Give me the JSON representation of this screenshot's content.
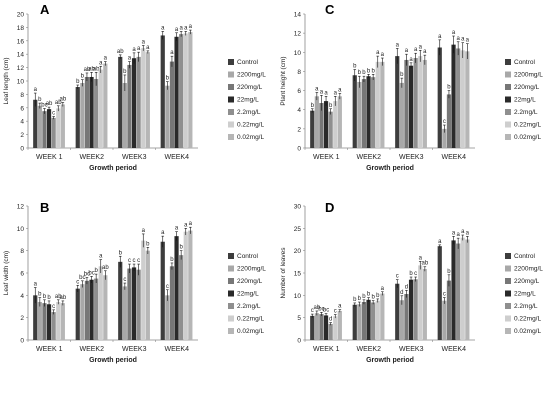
{
  "chart_data": [
    {
      "type": "bar",
      "panel_letter": "A",
      "title": "",
      "xlabel": "Growth period",
      "ylabel": "Leaf length (cm)",
      "ylim": [
        0,
        20
      ],
      "yticks": [
        0,
        2,
        4,
        6,
        8,
        10,
        12,
        14,
        16,
        18,
        20
      ],
      "grid": false,
      "legend_position": "right",
      "categories": [
        "WEEK 1",
        "WEEK2",
        "WEEK3",
        "WEEK4"
      ],
      "series": [
        {
          "name": "Control",
          "values": [
            7.2,
            9.1,
            13.6,
            16.8
          ],
          "errors": [
            1.0,
            0.3,
            0.3,
            0.6
          ],
          "letters": [
            "a",
            "b",
            "ab",
            "a"
          ]
        },
        {
          "name": "2200mg/L",
          "values": [
            6.3,
            9.7,
            9.7,
            9.3
          ],
          "errors": [
            0.4,
            0.5,
            1.2,
            0.6
          ],
          "letters": [
            "b",
            "b",
            "b",
            "b"
          ]
        },
        {
          "name": "220mg/L",
          "values": [
            5.5,
            10.6,
            12.4,
            12.9
          ],
          "errors": [
            0.4,
            0.6,
            0.5,
            0.8
          ],
          "letters": [
            "bc",
            "ab",
            "a",
            "a"
          ]
        },
        {
          "name": "22mg/L",
          "values": [
            5.8,
            10.6,
            13.4,
            16.6
          ],
          "errors": [
            0.3,
            0.7,
            0.8,
            0.6
          ],
          "letters": [
            "ab",
            "ab",
            "a",
            "a"
          ]
        },
        {
          "name": "2.2mg/L",
          "values": [
            4.5,
            10.3,
            13.6,
            17.0
          ],
          "errors": [
            0.2,
            1.0,
            0.7,
            0.4
          ],
          "letters": [
            "c",
            "ab",
            "a",
            "a"
          ]
        },
        {
          "name": "0.22mg/L",
          "values": [
            5.9,
            11.7,
            14.9,
            17.1
          ],
          "errors": [
            0.4,
            0.5,
            0.4,
            0.3
          ],
          "letters": [
            "ab",
            "a",
            "a",
            "a"
          ]
        },
        {
          "name": "0.02mg/L",
          "values": [
            6.5,
            12.6,
            14.3,
            17.3
          ],
          "errors": [
            0.3,
            0.3,
            0.2,
            0.3
          ],
          "letters": [
            "ab",
            "a",
            "a",
            "a"
          ]
        }
      ]
    },
    {
      "type": "bar",
      "panel_letter": "C",
      "title": "",
      "xlabel": "Growth period",
      "ylabel": "Plant height (cm)",
      "ylim": [
        0,
        14
      ],
      "yticks": [
        0,
        2,
        4,
        6,
        8,
        10,
        12,
        14
      ],
      "grid": false,
      "legend_position": "right",
      "categories": [
        "WEEK 1",
        "WEEK2",
        "WEEK3",
        "WEEK4"
      ],
      "series": [
        {
          "name": "Control",
          "values": [
            3.9,
            7.6,
            9.6,
            10.5
          ],
          "errors": [
            0.2,
            0.6,
            0.8,
            0.8
          ],
          "letters": [
            "b",
            "b",
            "a",
            "a"
          ]
        },
        {
          "name": "2200mg/L",
          "values": [
            5.4,
            6.9,
            6.8,
            2.0
          ],
          "errors": [
            0.4,
            0.6,
            0.5,
            0.4
          ],
          "letters": [
            "a",
            "b",
            "b",
            "c"
          ]
        },
        {
          "name": "220mg/L",
          "values": [
            4.7,
            7.2,
            9.2,
            5.6
          ],
          "errors": [
            0.8,
            0.3,
            0.6,
            0.4
          ],
          "letters": [
            "a",
            "b",
            "a",
            "b"
          ]
        },
        {
          "name": "22mg/L",
          "values": [
            4.9,
            7.5,
            8.6,
            10.8
          ],
          "errors": [
            0.5,
            0.2,
            0.3,
            0.9
          ],
          "letters": [
            "a",
            "b",
            "a",
            "a"
          ]
        },
        {
          "name": "2.2mg/L",
          "values": [
            3.8,
            7.4,
            9.4,
            10.4
          ],
          "errors": [
            0.3,
            0.3,
            0.5,
            0.7
          ],
          "letters": [
            "b",
            "b",
            "a",
            "a"
          ]
        },
        {
          "name": "0.22mg/L",
          "values": [
            4.9,
            9.0,
            9.6,
            10.2
          ],
          "errors": [
            0.5,
            0.6,
            0.6,
            0.8
          ],
          "letters": [
            "a",
            "a",
            "a",
            "a"
          ]
        },
        {
          "name": "0.02mg/L",
          "values": [
            5.4,
            9.0,
            9.2,
            10.1
          ],
          "errors": [
            0.3,
            0.4,
            0.5,
            0.8
          ],
          "letters": [
            "a",
            "a",
            "a",
            "a"
          ]
        }
      ]
    },
    {
      "type": "bar",
      "panel_letter": "B",
      "title": "",
      "xlabel": "Growth period",
      "ylabel": "Leaf width (cm)",
      "ylim": [
        0,
        12
      ],
      "yticks": [
        0,
        2,
        4,
        6,
        8,
        10,
        12
      ],
      "grid": false,
      "legend_position": "right",
      "categories": [
        "WEEK 1",
        "WEEK2",
        "WEEK3",
        "WEEK4"
      ],
      "series": [
        {
          "name": "Control",
          "values": [
            4.0,
            4.6,
            7.0,
            8.8
          ],
          "errors": [
            0.7,
            0.3,
            0.5,
            0.5
          ],
          "letters": [
            "a",
            "c",
            "b",
            "a"
          ]
        },
        {
          "name": "2200mg/L",
          "values": [
            3.4,
            5.0,
            4.8,
            4.0
          ],
          "errors": [
            0.4,
            0.3,
            0.3,
            0.5
          ],
          "letters": [
            "b",
            "bc",
            "c",
            "c"
          ]
        },
        {
          "name": "220mg/L",
          "values": [
            3.3,
            5.3,
            6.4,
            6.6
          ],
          "errors": [
            0.3,
            0.3,
            0.4,
            0.3
          ],
          "letters": [
            "b",
            "bc",
            "c",
            "b"
          ]
        },
        {
          "name": "22mg/L",
          "values": [
            3.2,
            5.4,
            6.5,
            9.3
          ],
          "errors": [
            0.3,
            0.3,
            0.3,
            0.4
          ],
          "letters": [
            "b",
            "bc",
            "c",
            "a"
          ]
        },
        {
          "name": "2.2mg/L",
          "values": [
            2.5,
            5.5,
            6.3,
            7.6
          ],
          "errors": [
            0.2,
            0.4,
            0.5,
            0.4
          ],
          "letters": [
            "c",
            "b",
            "c",
            "b"
          ]
        },
        {
          "name": "0.22mg/L",
          "values": [
            3.4,
            6.6,
            8.9,
            9.7
          ],
          "errors": [
            0.2,
            0.6,
            0.6,
            0.3
          ],
          "letters": [
            "ab",
            "a",
            "a",
            "a"
          ]
        },
        {
          "name": "0.02mg/L",
          "values": [
            3.3,
            5.8,
            8.0,
            9.8
          ],
          "errors": [
            0.2,
            0.4,
            0.3,
            0.3
          ],
          "letters": [
            "ab",
            "ab",
            "b",
            "a"
          ]
        }
      ]
    },
    {
      "type": "bar",
      "panel_letter": "D",
      "title": "",
      "xlabel": "Growth period",
      "ylabel": "Number of leaves",
      "ylim": [
        0,
        30
      ],
      "yticks": [
        0,
        5,
        10,
        15,
        20,
        25,
        30
      ],
      "grid": false,
      "legend_position": "right",
      "categories": [
        "WEEK 1",
        "WEEK2",
        "WEEK3",
        "WEEK4"
      ],
      "series": [
        {
          "name": "Control",
          "values": [
            5.4,
            7.9,
            12.6,
            21.0
          ],
          "errors": [
            0.4,
            0.4,
            0.9,
            0.3
          ],
          "letters": [
            "c",
            "b",
            "c",
            "a"
          ]
        },
        {
          "name": "2200mg/L",
          "values": [
            6.0,
            8.0,
            8.9,
            8.8
          ],
          "errors": [
            0.5,
            0.5,
            1.0,
            0.7
          ],
          "letters": [
            "ab",
            "b",
            "d",
            "c"
          ]
        },
        {
          "name": "220mg/L",
          "values": [
            5.8,
            8.5,
            10.3,
            13.3
          ],
          "errors": [
            0.4,
            0.5,
            0.8,
            1.3
          ],
          "letters": [
            "bc",
            "b",
            "d",
            "b"
          ]
        },
        {
          "name": "22mg/L",
          "values": [
            5.5,
            9.0,
            13.5,
            22.3
          ],
          "errors": [
            0.4,
            0.5,
            0.6,
            0.9
          ],
          "letters": [
            "bc",
            "b",
            "b",
            "a"
          ]
        },
        {
          "name": "2.2mg/L",
          "values": [
            3.6,
            8.4,
            13.6,
            21.6
          ],
          "errors": [
            0.3,
            0.4,
            0.5,
            1.2
          ],
          "letters": [
            "d",
            "b",
            "c",
            "a"
          ]
        },
        {
          "name": "0.22mg/L",
          "values": [
            5.3,
            8.8,
            16.7,
            22.9
          ],
          "errors": [
            0.4,
            0.4,
            0.9,
            0.6
          ],
          "letters": [
            "c",
            "b",
            "a",
            "a"
          ]
        },
        {
          "name": "0.02mg/L",
          "values": [
            6.5,
            10.4,
            15.9,
            22.5
          ],
          "errors": [
            0.3,
            0.4,
            0.5,
            0.7
          ],
          "letters": [
            "a",
            "a",
            "ab",
            "a"
          ]
        }
      ]
    }
  ],
  "series_colors": [
    "#3d3d3d",
    "#a8a8a8",
    "#777777",
    "#2a2a2a",
    "#8f8f8f",
    "#cecece",
    "#b6b6b6"
  ]
}
